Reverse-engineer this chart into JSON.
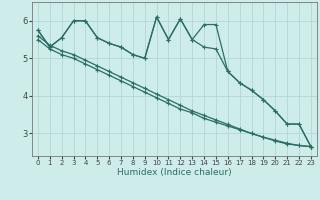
{
  "title": "",
  "xlabel": "Humidex (Indice chaleur)",
  "ylabel": "",
  "background_color": "#ceecea",
  "grid_color": "#b0d8d4",
  "line_color": "#2a6e65",
  "xlim": [
    -0.5,
    23.5
  ],
  "ylim": [
    2.4,
    6.5
  ],
  "xticks": [
    0,
    1,
    2,
    3,
    4,
    5,
    6,
    7,
    8,
    9,
    10,
    11,
    12,
    13,
    14,
    15,
    16,
    17,
    18,
    19,
    20,
    21,
    22,
    23
  ],
  "yticks": [
    3,
    4,
    5,
    6
  ],
  "series": [
    [
      5.75,
      5.3,
      5.55,
      6.0,
      6.0,
      5.55,
      5.4,
      5.3,
      5.1,
      5.0,
      6.1,
      5.5,
      6.05,
      5.5,
      5.9,
      5.9,
      4.65,
      4.35,
      4.15,
      3.9,
      3.6,
      3.25,
      3.25,
      2.65
    ],
    [
      5.75,
      5.3,
      5.55,
      6.0,
      6.0,
      5.55,
      5.4,
      5.3,
      5.1,
      5.0,
      6.1,
      5.5,
      6.05,
      5.5,
      5.3,
      5.25,
      4.65,
      4.35,
      4.15,
      3.9,
      3.6,
      3.25,
      3.25,
      2.65
    ],
    [
      5.5,
      5.25,
      5.1,
      5.0,
      4.85,
      4.7,
      4.55,
      4.4,
      4.25,
      4.1,
      3.95,
      3.8,
      3.65,
      3.55,
      3.4,
      3.3,
      3.2,
      3.1,
      3.0,
      2.9,
      2.8,
      2.72,
      2.68,
      2.65
    ],
    [
      5.6,
      5.35,
      5.2,
      5.1,
      4.95,
      4.8,
      4.65,
      4.5,
      4.35,
      4.2,
      4.05,
      3.9,
      3.75,
      3.6,
      3.48,
      3.36,
      3.24,
      3.12,
      3.0,
      2.9,
      2.82,
      2.74,
      2.68,
      2.65
    ]
  ]
}
